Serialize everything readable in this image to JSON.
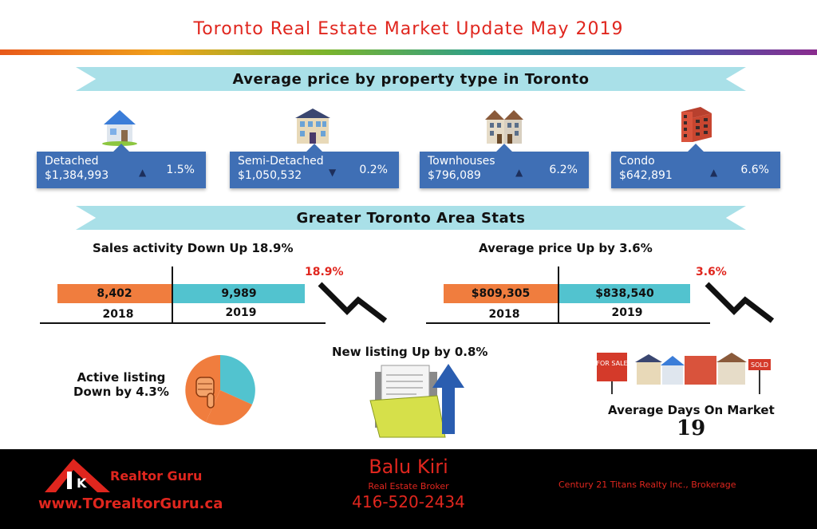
{
  "header": {
    "title": "Toronto Real Estate Market Update May 2019"
  },
  "section1": {
    "title": "Average price by property type in Toronto"
  },
  "properties": [
    {
      "type": "Detached",
      "price": "$1,384,993",
      "direction": "up",
      "change": "1.5%",
      "icon": "detached-house-icon"
    },
    {
      "type": "Semi-Detached",
      "price": "$1,050,532",
      "direction": "down",
      "change": "0.2%",
      "icon": "semi-detached-house-icon"
    },
    {
      "type": "Townhouses",
      "price": "$796,089",
      "direction": "up",
      "change": "6.2%",
      "icon": "townhouse-icon"
    },
    {
      "type": "Condo",
      "price": "$642,891",
      "direction": "up",
      "change": "6.6%",
      "icon": "condo-building-icon"
    }
  ],
  "section2": {
    "title": "Greater Toronto Area Stats"
  },
  "sales": {
    "title": "Sales activity Down Up 18.9%",
    "value_2018": "8,402",
    "value_2019": "9,989",
    "year_2018": "2018",
    "year_2019": "2019",
    "change": "18.9%"
  },
  "avg_price": {
    "title": "Average price  Up by 3.6%",
    "value_2018": "$809,305",
    "value_2019": "$838,540",
    "year_2018": "2018",
    "year_2019": "2019",
    "change": "3.6%"
  },
  "active_listing": {
    "line1": "Active listing",
    "line2": "Down by 4.3%"
  },
  "new_listing": {
    "title": "New listing Up by 0.8%"
  },
  "days_on_market": {
    "label": "Average Days On Market",
    "value": "19",
    "for_sale_sign": "FOR SALE",
    "sold_sign": "SOLD"
  },
  "footer": {
    "brand": "Realtor Guru",
    "website": "www.TOrealtorGuru.ca",
    "agent_name": "Balu Kiri",
    "agent_title": "Real Estate Broker",
    "phone": "416-520-2434",
    "brokerage": "Century 21 Titans Realty Inc., Brokerage"
  },
  "colors": {
    "title_red": "#e0261e",
    "ribbon": "#a9e0e8",
    "card_blue": "#3f6fb5",
    "orange": "#f07d3e",
    "teal": "#52c3cf",
    "footer_bg": "#000000"
  }
}
